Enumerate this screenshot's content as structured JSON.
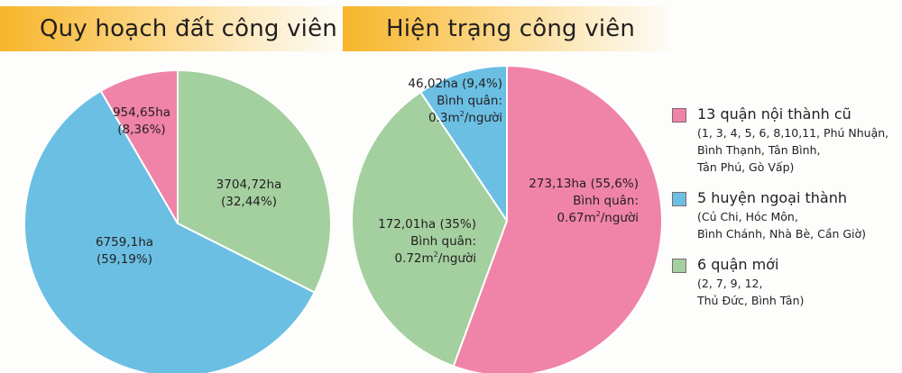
{
  "colors": {
    "pink": "#f083a8",
    "blue": "#6bbfe3",
    "green": "#a4cf9f",
    "title_gradient_start": "#f7b52b"
  },
  "chart_data": [
    {
      "type": "pie",
      "title": "Quy hoạch đất công viên",
      "unit": "ha",
      "slices": [
        {
          "name": "6 quận mới",
          "value": 3704.72,
          "percent": 32.44,
          "label_line1": "3704,72ha",
          "label_line2": "(32,44%)",
          "color": "#a4cf9f"
        },
        {
          "name": "5 huyện ngoại thành",
          "value": 6759.1,
          "percent": 59.19,
          "label_line1": "6759,1ha",
          "label_line2": "(59,19%)",
          "color": "#6bbfe3"
        },
        {
          "name": "13 quận nội thành cũ",
          "value": 954.65,
          "percent": 8.36,
          "label_line1": "954,65ha",
          "label_line2": "(8,36%)",
          "color": "#f083a8"
        }
      ]
    },
    {
      "type": "pie",
      "title": "Hiện trạng công viên",
      "unit": "ha",
      "slices": [
        {
          "name": "13 quận nội thành cũ",
          "value": 273.13,
          "percent": 55.6,
          "per_capita_m2": 0.67,
          "label_line1": "273,13ha (55,6%)",
          "label_line2": "Bình quân:",
          "label_line3_value": "0.67m",
          "label_line3_unit": "/người",
          "color": "#f083a8"
        },
        {
          "name": "6 quận mới",
          "value": 172.01,
          "percent": 35,
          "per_capita_m2": 0.72,
          "label_line1": "172,01ha (35%)",
          "label_line2": "Bình quân:",
          "label_line3_value": "0.72m",
          "label_line3_unit": "/người",
          "color": "#a4cf9f"
        },
        {
          "name": "5 huyện ngoại thành",
          "value": 46.02,
          "percent": 9.4,
          "per_capita_m2": 0.3,
          "label_line1": "46,02ha (9,4%)",
          "label_line2": "Bình quân:",
          "label_line3_value": "0.3m",
          "label_line3_unit": "/người",
          "color": "#6bbfe3"
        }
      ]
    }
  ],
  "legend": {
    "position": "right",
    "items": [
      {
        "title": "13 quận nội thành cũ",
        "detail": "(1, 3, 4, 5, 6, 8,10,11, Phú Nhuận,\nBình Thạnh, Tân Bình,\nTân Phú, Gò Vấp)",
        "color": "#f083a8"
      },
      {
        "title": "5 huyện ngoại thành",
        "detail": "(Củ Chi, Hóc Môn,\nBình Chánh, Nhà Bè, Cần Giờ)",
        "color": "#6bbfe3"
      },
      {
        "title": "6 quận mới",
        "detail": "(2, 7, 9, 12,\nThủ Đức, Bình Tân)",
        "color": "#a4cf9f"
      }
    ]
  },
  "superscript": "2"
}
